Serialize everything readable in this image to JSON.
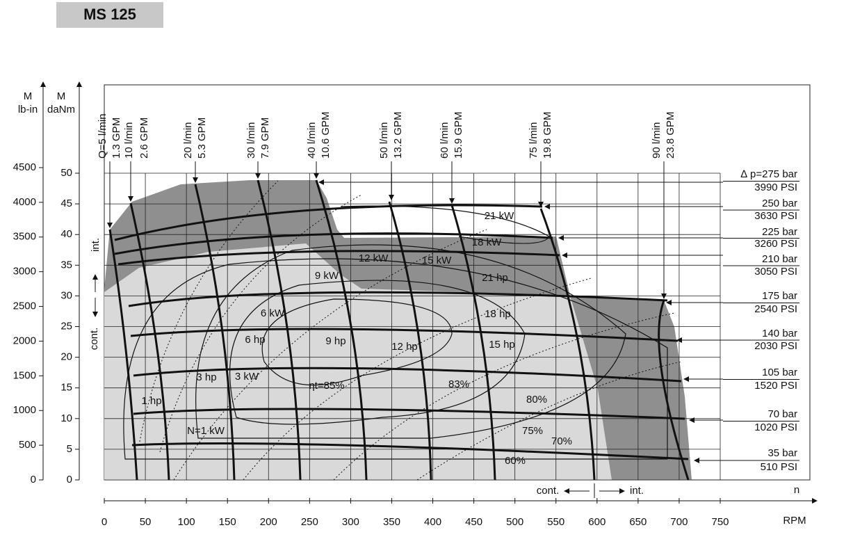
{
  "title": "MS 125",
  "x_axis": {
    "label": "RPM",
    "n_label": "n",
    "xlim": [
      0,
      750
    ],
    "ticks": [
      0,
      50,
      100,
      150,
      200,
      250,
      300,
      350,
      400,
      450,
      500,
      550,
      600,
      650,
      700,
      750
    ]
  },
  "y_axis_outer": {
    "label_top": "M",
    "label_unit": "lb-in",
    "ylim": [
      0,
      4500
    ],
    "ticks": [
      0,
      500,
      1000,
      1500,
      2000,
      2500,
      3000,
      3500,
      4000,
      4500
    ]
  },
  "y_axis_inner": {
    "label_top": "M",
    "label_unit": "daNm",
    "ylim": [
      0,
      50
    ],
    "ticks": [
      0,
      5,
      10,
      15,
      20,
      25,
      30,
      35,
      40,
      45,
      50
    ]
  },
  "side_labels": {
    "int": "int.",
    "cont": "cont.",
    "bottom_cont": "cont.",
    "bottom_int": "int."
  },
  "flows": [
    {
      "lpm": "Q=5 l/min",
      "gpm": "1.3 GPM"
    },
    {
      "lpm": "10 l/min",
      "gpm": "2.6 GPM"
    },
    {
      "lpm": "20 l/min",
      "gpm": "5.3 GPM"
    },
    {
      "lpm": "30 l/min",
      "gpm": "7.9 GPM"
    },
    {
      "lpm": "40 l/min",
      "gpm": "10.6 GPM"
    },
    {
      "lpm": "50 l/min",
      "gpm": "13.2 GPM"
    },
    {
      "lpm": "60 l/min",
      "gpm": "15.9 GPM"
    },
    {
      "lpm": "75 l/min",
      "gpm": "19.8 GPM"
    },
    {
      "lpm": "90 l/min",
      "gpm": "23.8 GPM"
    }
  ],
  "pressures": [
    {
      "bar": "∆ p=275 bar",
      "psi": "3990 PSI"
    },
    {
      "bar": "250 bar",
      "psi": "3630 PSI"
    },
    {
      "bar": "225 bar",
      "psi": "3260 PSI"
    },
    {
      "bar": "210 bar",
      "psi": "3050 PSI"
    },
    {
      "bar": "175 bar",
      "psi": "2540 PSI"
    },
    {
      "bar": "140 bar",
      "psi": "2030 PSI"
    },
    {
      "bar": "105 bar",
      "psi": "1520 PSI"
    },
    {
      "bar": "70 bar",
      "psi": "1020 PSI"
    },
    {
      "bar": "35 bar",
      "psi": "510 PSI"
    }
  ],
  "curve_labels": [
    "21 kW",
    "18 kW",
    "15 kW",
    "12 kW",
    "9 kW",
    "6 kW",
    "3 kW",
    "N=1 kW",
    "21 hp",
    "18 hp",
    "15 hp",
    "12 hp",
    "9 hp",
    "6 hp",
    "3 hp",
    "1 hp",
    "ηt=85%",
    "83%",
    "80%",
    "75%",
    "70%",
    "60%"
  ]
}
